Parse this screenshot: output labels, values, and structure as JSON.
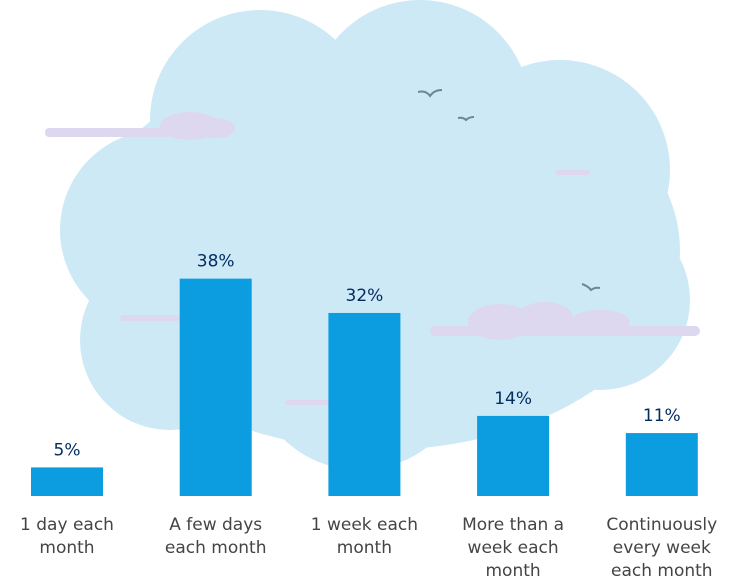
{
  "chart_data": {
    "type": "bar",
    "categories": [
      "1 day each month",
      "A few days each month",
      "1 week each month",
      "More than a week each month",
      "Continuously every week each month"
    ],
    "values": [
      5,
      38,
      32,
      14,
      11
    ],
    "value_labels": [
      "5%",
      "38%",
      "32%",
      "14%",
      "11%"
    ],
    "color": "#0b9de0"
  }
}
